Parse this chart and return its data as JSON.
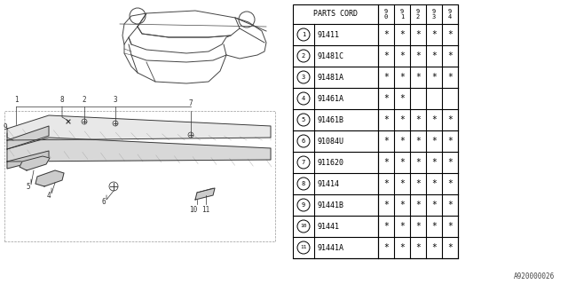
{
  "diagram_label": "A920000026",
  "table_header_col": "PARTS CORD",
  "table_years": [
    "9\n0",
    "9\n1",
    "9\n2",
    "9\n3",
    "9\n4"
  ],
  "table_rows": [
    {
      "num": 1,
      "part": "91411",
      "marks": [
        true,
        true,
        true,
        true,
        true
      ]
    },
    {
      "num": 2,
      "part": "91481C",
      "marks": [
        true,
        true,
        true,
        true,
        true
      ]
    },
    {
      "num": 3,
      "part": "91481A",
      "marks": [
        true,
        true,
        true,
        true,
        true
      ]
    },
    {
      "num": 4,
      "part": "91461A",
      "marks": [
        true,
        true,
        false,
        false,
        false
      ]
    },
    {
      "num": 5,
      "part": "91461B",
      "marks": [
        true,
        true,
        true,
        true,
        true
      ]
    },
    {
      "num": 6,
      "part": "91084U",
      "marks": [
        true,
        true,
        true,
        true,
        true
      ]
    },
    {
      "num": 7,
      "part": "911620",
      "marks": [
        true,
        true,
        true,
        true,
        true
      ]
    },
    {
      "num": 8,
      "part": "91414",
      "marks": [
        true,
        true,
        true,
        true,
        true
      ]
    },
    {
      "num": 9,
      "part": "91441B",
      "marks": [
        true,
        true,
        true,
        true,
        true
      ]
    },
    {
      "num": 10,
      "part": "91441",
      "marks": [
        true,
        true,
        true,
        true,
        true
      ]
    },
    {
      "num": 11,
      "part": "91441A",
      "marks": [
        true,
        true,
        true,
        true,
        true
      ]
    }
  ],
  "bg_color": "#ffffff",
  "line_color": "#000000"
}
